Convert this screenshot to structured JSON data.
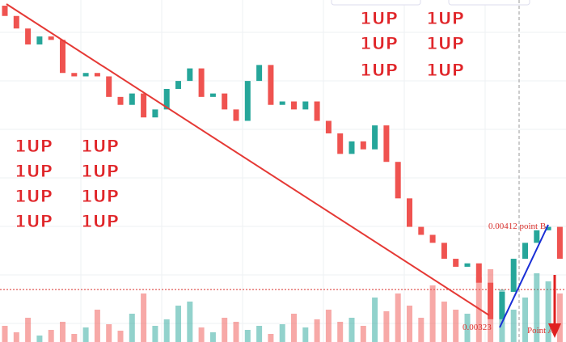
{
  "chart_data": {
    "type": "candlestick",
    "open": [
      0.00605,
      0.00596,
      0.00585,
      0.00571,
      0.00578,
      0.00575,
      0.00546,
      0.00543,
      0.00546,
      0.00543,
      0.00525,
      0.00518,
      0.00528,
      0.00507,
      0.00514,
      0.00532,
      0.00539,
      0.0055,
      0.00525,
      0.00528,
      0.00514,
      0.00504,
      0.00539,
      0.00553,
      0.00518,
      0.00521,
      0.00514,
      0.00521,
      0.00504,
      0.00493,
      0.00475,
      0.00486,
      0.00479,
      0.005,
      0.00468,
      0.00436,
      0.00411,
      0.00404,
      0.00397,
      0.00383,
      0.00376,
      0.00379,
      0.00362,
      0.0033,
      0.00354,
      0.00383,
      0.00397,
      0.00408,
      0.00411
    ],
    "close": [
      0.00596,
      0.00585,
      0.00571,
      0.00578,
      0.00575,
      0.00546,
      0.00543,
      0.00546,
      0.00543,
      0.00525,
      0.00518,
      0.00528,
      0.00507,
      0.00514,
      0.00532,
      0.00539,
      0.0055,
      0.00525,
      0.00528,
      0.00514,
      0.00504,
      0.00539,
      0.00553,
      0.00518,
      0.00521,
      0.00514,
      0.00521,
      0.00504,
      0.00493,
      0.00475,
      0.00486,
      0.00479,
      0.005,
      0.00468,
      0.00436,
      0.00411,
      0.00404,
      0.00397,
      0.00383,
      0.00376,
      0.00379,
      0.00362,
      0.0033,
      0.00354,
      0.00383,
      0.00397,
      0.00408,
      0.00411,
      0.00383
    ],
    "volume": [
      20,
      12,
      30,
      8,
      15,
      25,
      10,
      18,
      40,
      22,
      14,
      35,
      60,
      20,
      28,
      45,
      50,
      18,
      12,
      30,
      25,
      15,
      20,
      10,
      22,
      35,
      18,
      28,
      40,
      25,
      30,
      20,
      55,
      38,
      60,
      45,
      30,
      70,
      50,
      40,
      35,
      80,
      90,
      65,
      40,
      55,
      85,
      75,
      60
    ],
    "ylim": [
      0.0031,
      0.0061
    ],
    "vlim": [
      0,
      120
    ],
    "up_color": "#26a69a",
    "down_color": "#ef5350",
    "level": 0.00356,
    "annotations": {
      "point_b": "0.00412 point B",
      "point_a_price": "0.00323",
      "point_a": "Point A"
    },
    "logos": [
      "1UP",
      "1UP",
      "1UP",
      "1UP",
      "1UP",
      "1UP",
      "1UP",
      "1UP",
      "1UP",
      "1UP",
      "1UP",
      "1UP",
      "1UP",
      "1UP"
    ]
  }
}
